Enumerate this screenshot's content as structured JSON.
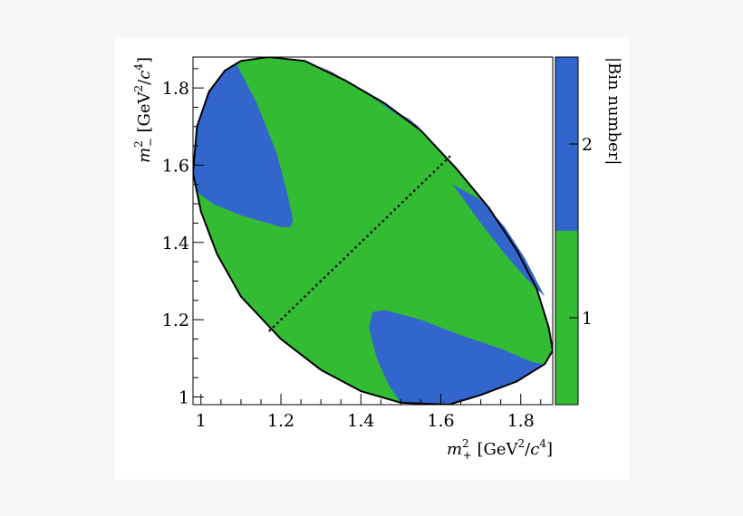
{
  "chart_data": {
    "type": "heatmap",
    "title": "",
    "xlabel": {
      "symbol": "m",
      "sup": "2",
      "sub": "+",
      "unit_open": " [GeV",
      "unit_sup": "2",
      "unit_mid": "/",
      "unit_c": "c",
      "unit_c_sup": "4",
      "unit_close": "]"
    },
    "ylabel": {
      "symbol": "m",
      "sup": "2",
      "sub": "−",
      "unit_open": " [GeV",
      "unit_sup": "2",
      "unit_mid": "/",
      "unit_c": "c",
      "unit_c_sup": "4",
      "unit_close": "]"
    },
    "xlim": [
      0.98,
      1.88
    ],
    "ylim": [
      0.98,
      1.88
    ],
    "x_ticks": [
      "1",
      "1.2",
      "1.4",
      "1.6",
      "1.8"
    ],
    "y_ticks": [
      "1",
      "1.2",
      "1.4",
      "1.6",
      "1.8"
    ],
    "colorbar": {
      "label": "|Bin number|",
      "range": [
        0.5,
        2.5
      ],
      "ticks": [
        "1",
        "2"
      ],
      "colors": [
        {
          "bin": 1,
          "color": "#33bb33"
        },
        {
          "bin": 2,
          "color": "#3366cc"
        }
      ]
    },
    "kinematic_boundary": [
      [
        0.98,
        1.58
      ],
      [
        0.99,
        1.7
      ],
      [
        1.02,
        1.79
      ],
      [
        1.06,
        1.845
      ],
      [
        1.1,
        1.87
      ],
      [
        1.17,
        1.88
      ],
      [
        1.26,
        1.87
      ],
      [
        1.36,
        1.82
      ],
      [
        1.46,
        1.76
      ],
      [
        1.55,
        1.69
      ],
      [
        1.64,
        1.59
      ],
      [
        1.72,
        1.49
      ],
      [
        1.79,
        1.38
      ],
      [
        1.84,
        1.28
      ],
      [
        1.87,
        1.18
      ],
      [
        1.88,
        1.12
      ],
      [
        1.86,
        1.085
      ],
      [
        1.79,
        1.04
      ],
      [
        1.7,
        1.005
      ],
      [
        1.62,
        0.98
      ],
      [
        1.5,
        0.985
      ],
      [
        1.4,
        1.015
      ],
      [
        1.3,
        1.07
      ],
      [
        1.2,
        1.15
      ],
      [
        1.1,
        1.26
      ],
      [
        1.04,
        1.37
      ],
      [
        1.0,
        1.48
      ]
    ],
    "regions": [
      {
        "bin": 2,
        "points": [
          [
            0.98,
            1.58
          ],
          [
            0.99,
            1.7
          ],
          [
            1.02,
            1.79
          ],
          [
            1.06,
            1.845
          ],
          [
            1.09,
            1.86
          ],
          [
            1.14,
            1.76
          ],
          [
            1.19,
            1.63
          ],
          [
            1.215,
            1.53
          ],
          [
            1.23,
            1.46
          ],
          [
            1.225,
            1.44
          ],
          [
            1.2,
            1.44
          ],
          [
            1.1,
            1.47
          ],
          [
            1.03,
            1.5
          ],
          [
            0.99,
            1.53
          ]
        ]
      },
      {
        "bin": 2,
        "points": [
          [
            1.29,
            1.86
          ],
          [
            1.36,
            1.82
          ],
          [
            1.45,
            1.76
          ],
          [
            1.52,
            1.71
          ],
          [
            1.55,
            1.695
          ],
          [
            1.52,
            1.72
          ],
          [
            1.42,
            1.78
          ],
          [
            1.33,
            1.84
          ]
        ]
      },
      {
        "bin": 2,
        "points": [
          [
            1.63,
            1.55
          ],
          [
            1.7,
            1.51
          ],
          [
            1.76,
            1.44
          ],
          [
            1.81,
            1.36
          ],
          [
            1.84,
            1.3
          ],
          [
            1.86,
            1.26
          ],
          [
            1.82,
            1.3
          ],
          [
            1.76,
            1.37
          ],
          [
            1.7,
            1.45
          ]
        ]
      },
      {
        "bin": 2,
        "points": [
          [
            1.43,
            1.22
          ],
          [
            1.46,
            1.225
          ],
          [
            1.55,
            1.2
          ],
          [
            1.65,
            1.16
          ],
          [
            1.75,
            1.125
          ],
          [
            1.83,
            1.09
          ],
          [
            1.86,
            1.085
          ],
          [
            1.79,
            1.04
          ],
          [
            1.7,
            1.005
          ],
          [
            1.62,
            0.98
          ],
          [
            1.5,
            0.985
          ],
          [
            1.47,
            1.03
          ],
          [
            1.44,
            1.1
          ],
          [
            1.42,
            1.18
          ]
        ]
      }
    ],
    "dotted_line": [
      [
        1.17,
        1.17
      ],
      [
        1.625,
        1.625
      ]
    ],
    "grid": false,
    "legend": "colorbar-right"
  }
}
